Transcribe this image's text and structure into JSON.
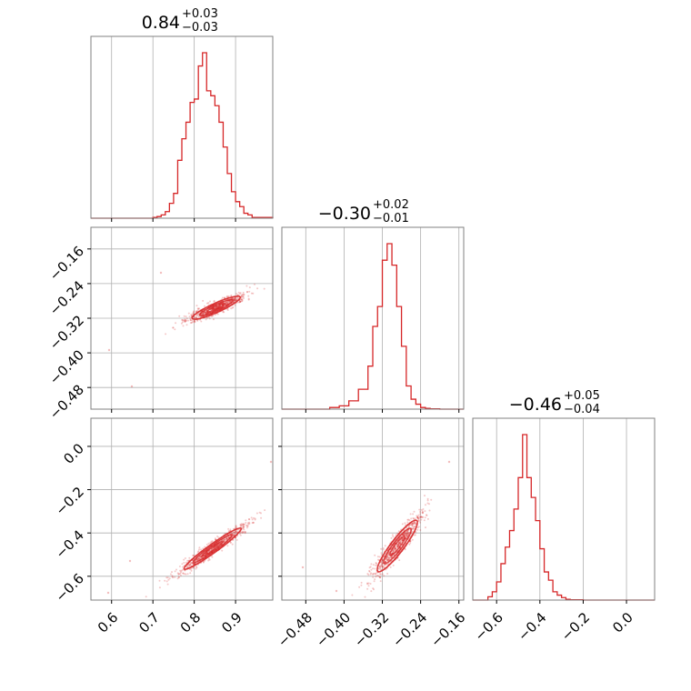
{
  "figure": {
    "type": "corner-plot",
    "color": "#d62728"
  },
  "chart_data": [
    {
      "type": "histogram",
      "panel": "hist-0",
      "title": {
        "value": "0.84",
        "plus": "+0.03",
        "minus": "−0.03"
      },
      "xlim": [
        0.55,
        0.99
      ],
      "bins": [
        0.7,
        0.71,
        0.72,
        0.73,
        0.74,
        0.75,
        0.76,
        0.77,
        0.78,
        0.79,
        0.8,
        0.81,
        0.82,
        0.83,
        0.84,
        0.85,
        0.86,
        0.87,
        0.88,
        0.89,
        0.9,
        0.91,
        0.92,
        0.93,
        0.94,
        0.99
      ],
      "counts": [
        0.005,
        0.01,
        0.02,
        0.04,
        0.09,
        0.15,
        0.35,
        0.48,
        0.58,
        0.7,
        0.72,
        0.92,
        1.0,
        0.77,
        0.74,
        0.68,
        0.58,
        0.43,
        0.27,
        0.16,
        0.1,
        0.07,
        0.03,
        0.02,
        0.005
      ]
    },
    {
      "type": "scatter",
      "panel": "scatter-1-0",
      "xlim": [
        0.55,
        0.99
      ],
      "ylim": [
        -0.53,
        -0.11
      ],
      "xticks": [
        0.6,
        0.7,
        0.8,
        0.9
      ],
      "yticks": [
        -0.16,
        -0.24,
        -0.32,
        -0.4,
        -0.48
      ],
      "ytick_labels": [
        "−0.16",
        "−0.24",
        "−0.32",
        "−0.40",
        "−0.48"
      ],
      "center": [
        0.84,
        -0.3
      ]
    },
    {
      "type": "histogram",
      "panel": "hist-1",
      "title": {
        "value": "−0.30",
        "plus": "+0.02",
        "minus": "−0.01"
      },
      "xlim": [
        -0.53,
        -0.15
      ],
      "bins": [
        -0.43,
        -0.41,
        -0.39,
        -0.37,
        -0.35,
        -0.34,
        -0.33,
        -0.32,
        -0.31,
        -0.3,
        -0.29,
        -0.28,
        -0.27,
        -0.26,
        -0.25,
        -0.24,
        -0.23,
        -0.22,
        -0.2
      ],
      "counts": [
        0.01,
        0.02,
        0.05,
        0.12,
        0.26,
        0.5,
        0.62,
        0.9,
        1.0,
        0.87,
        0.62,
        0.38,
        0.14,
        0.06,
        0.03,
        0.01,
        0.005,
        0.002
      ]
    },
    {
      "type": "scatter",
      "panel": "scatter-2-0",
      "xlim": [
        0.55,
        0.99
      ],
      "ylim": [
        -0.71,
        0.13
      ],
      "xticks": [
        0.6,
        0.7,
        0.8,
        0.9
      ],
      "yticks": [
        0.0,
        -0.2,
        -0.4,
        -0.6
      ],
      "ytick_labels": [
        "0.0",
        "−0.2",
        "−0.4",
        "−0.6"
      ],
      "center": [
        0.84,
        -0.46
      ]
    },
    {
      "type": "scatter",
      "panel": "scatter-2-1",
      "xlim": [
        -0.53,
        -0.15
      ],
      "ylim": [
        -0.71,
        0.13
      ],
      "xticks": [
        -0.48,
        -0.4,
        -0.32,
        -0.24,
        -0.16
      ],
      "center": [
        -0.3,
        -0.46
      ]
    },
    {
      "type": "histogram",
      "panel": "hist-2",
      "title": {
        "value": "−0.46",
        "plus": "+0.05",
        "minus": "−0.04"
      },
      "xlim": [
        -0.71,
        0.13
      ],
      "bins": [
        -0.64,
        -0.62,
        -0.6,
        -0.58,
        -0.56,
        -0.54,
        -0.52,
        -0.5,
        -0.48,
        -0.46,
        -0.44,
        -0.42,
        -0.4,
        -0.38,
        -0.36,
        -0.34,
        -0.32,
        -0.3,
        -0.28,
        -0.26,
        -0.2
      ],
      "counts": [
        0.02,
        0.05,
        0.11,
        0.22,
        0.32,
        0.42,
        0.55,
        0.74,
        1.0,
        0.74,
        0.62,
        0.48,
        0.31,
        0.17,
        0.12,
        0.05,
        0.03,
        0.015,
        0.005,
        0.002
      ]
    }
  ],
  "axes": {
    "p0_xticks": [
      "0.6",
      "0.7",
      "0.8",
      "0.9"
    ],
    "p1_xticks": [
      "−0.48",
      "−0.40",
      "−0.32",
      "−0.24",
      "−0.16"
    ],
    "p2_xticks": [
      "−0.6",
      "−0.4",
      "−0.2",
      "0.0"
    ]
  }
}
